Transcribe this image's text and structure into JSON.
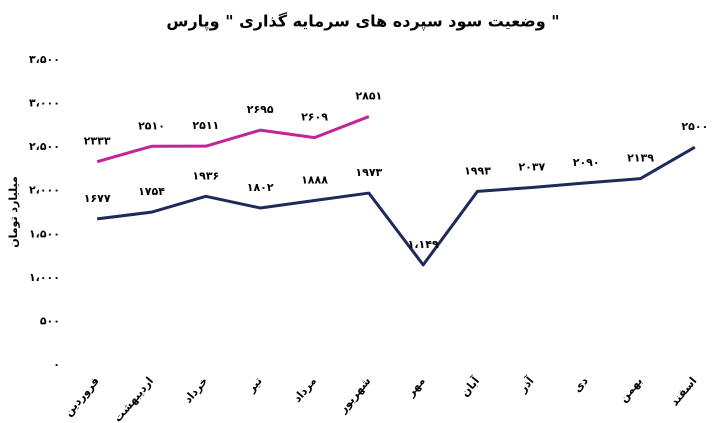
{
  "chart_data": {
    "type": "line",
    "title": "وضعیت سود سپرده های سرمایه گذاری \" وپارس \"",
    "y_label": "میلیارد تومان",
    "categories": [
      "فروردین",
      "اردیبهشت",
      "خرداد",
      "تیر",
      "مرداد",
      "شهریور",
      "مهر",
      "آبان",
      "آذر",
      "دی",
      "بهمن",
      "اسفند"
    ],
    "series": [
      {
        "color": "#1f2a5c",
        "values": [
          1677,
          1754,
          1936,
          1802,
          1888,
          1973,
          1149,
          1993,
          2037,
          2090,
          2139,
          2500
        ],
        "value_labels": [
          "۱۶۷۷",
          "۱۷۵۴",
          "۱۹۳۶",
          "۱۸۰۲",
          "۱۸۸۸",
          "۱۹۷۳",
          "۱،۱۴۹",
          "۱۹۹۳",
          "۲۰۳۷",
          "۲۰۹۰",
          "۲۱۳۹",
          "۲۵۰۰"
        ]
      },
      {
        "color": "#c0259a",
        "values": [
          2333,
          2510,
          2511,
          2695,
          2609,
          2851,
          null,
          null,
          null,
          null,
          null,
          null
        ],
        "value_labels": [
          "۲۳۳۳",
          "۲۵۱۰",
          "۲۵۱۱",
          "۲۶۹۵",
          "۲۶۰۹",
          "۲۸۵۱",
          null,
          null,
          null,
          null,
          null,
          null
        ]
      }
    ],
    "ylim": [
      0,
      3500
    ],
    "yticks": [
      {
        "value": 0,
        "label": "۰"
      },
      {
        "value": 500,
        "label": "۵۰۰"
      },
      {
        "value": 1000,
        "label": "۱،۰۰۰"
      },
      {
        "value": 1500,
        "label": "۱،۵۰۰"
      },
      {
        "value": 2000,
        "label": "۲،۰۰۰"
      },
      {
        "value": 2500,
        "label": "۲،۵۰۰"
      },
      {
        "value": 3000,
        "label": "۳،۰۰۰"
      },
      {
        "value": 3500,
        "label": "۳،۵۰۰"
      }
    ],
    "grid": false
  }
}
